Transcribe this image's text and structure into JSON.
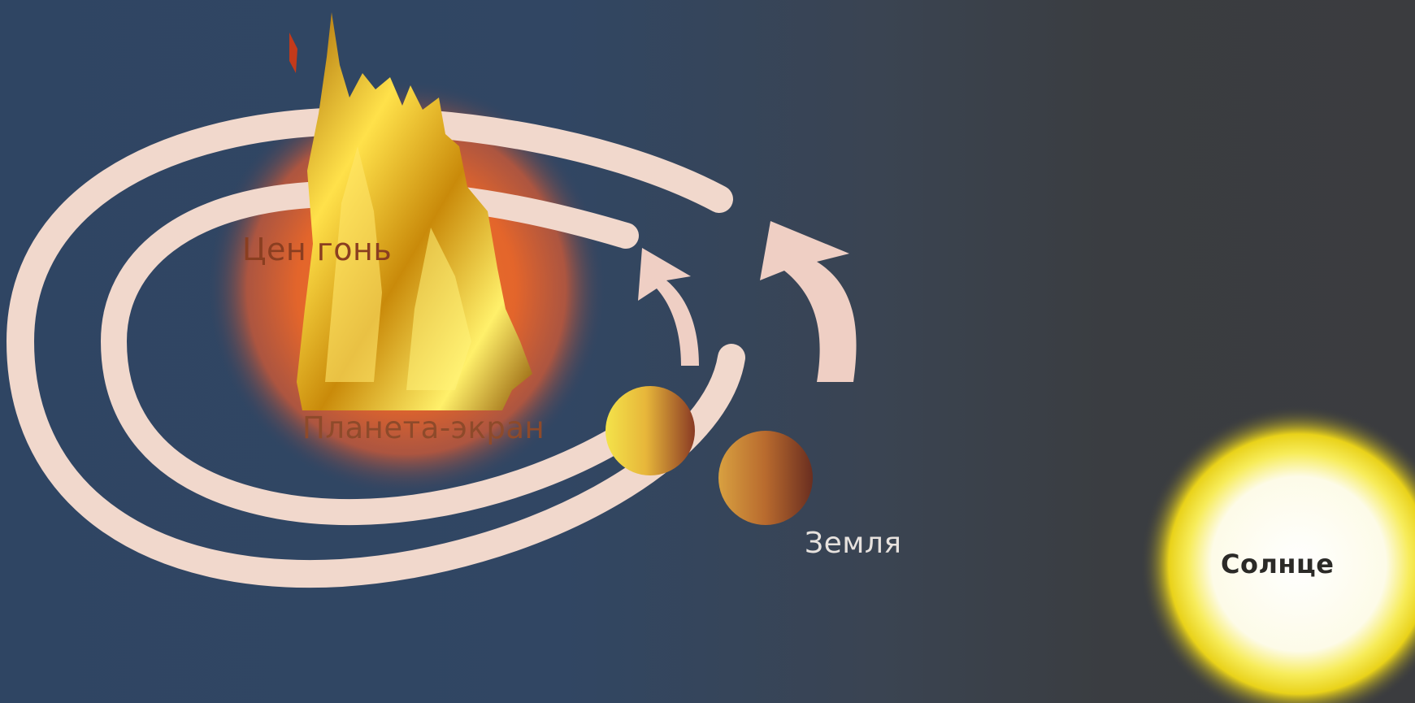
{
  "diagram": {
    "central_fire_label": "Цен          гонь",
    "counter_earth_label": "Планета-экран",
    "earth_label": "Земля",
    "sun_label": "Солнце"
  },
  "colors": {
    "background_left": "#2f4563",
    "background_right": "#3b3c3f",
    "orbit": "#f2d9cc",
    "central_glow": "#e2662c",
    "fire": "#f5c21a",
    "sun_core": "#ffffff",
    "sun_halo": "#f5e52a"
  },
  "icons": [
    "fire-icon",
    "orbit-arrow-icon",
    "planet-icon",
    "sun-icon"
  ]
}
